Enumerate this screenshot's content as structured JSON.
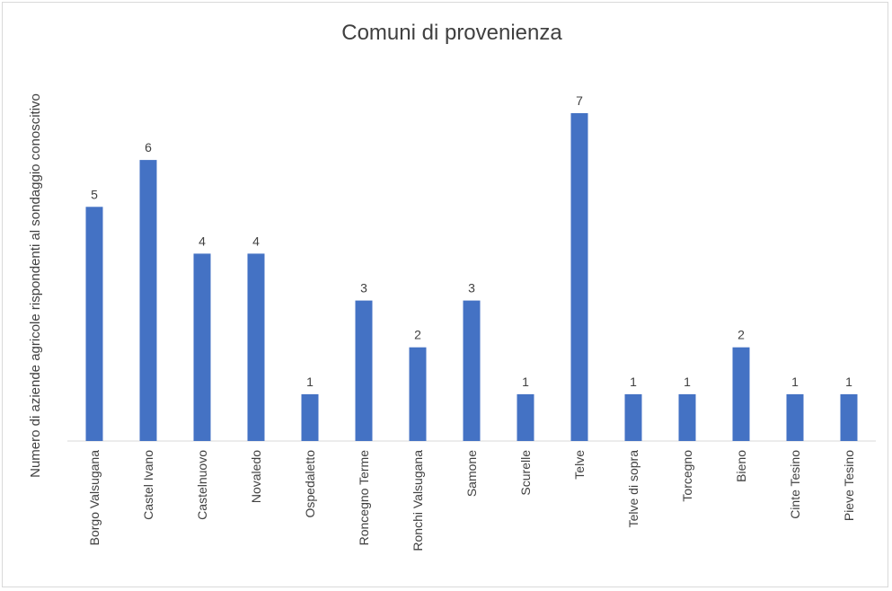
{
  "chart_data": {
    "type": "bar",
    "title": "Comuni di provenienza",
    "xlabel": "",
    "ylabel": "Numero di aziende agricole rispondenti al sondaggio conoscitivo",
    "categories": [
      "Borgo Valsugana",
      "Castel Ivano",
      "Castelnuovo",
      "Novaledo",
      "Ospedaletto",
      "Roncegno Terme",
      "Ronchi Valsugana",
      "Samone",
      "Scurelle",
      "Telve",
      "Telve di sopra",
      "Torcegno",
      "Bieno",
      "Cinte Tesino",
      "Pieve Tesino"
    ],
    "values": [
      5,
      6,
      4,
      4,
      1,
      3,
      2,
      3,
      1,
      7,
      1,
      1,
      2,
      1,
      1
    ],
    "data_labels": [
      "5",
      "6",
      "4",
      "4",
      "1",
      "3",
      "2",
      "3",
      "1",
      "7",
      "1",
      "1",
      "2",
      "1",
      "1"
    ],
    "ylim": [
      0,
      7
    ],
    "grid": false,
    "legend": "none",
    "bar_color": "#4472C4",
    "axis_color": "#d9d9d9"
  }
}
